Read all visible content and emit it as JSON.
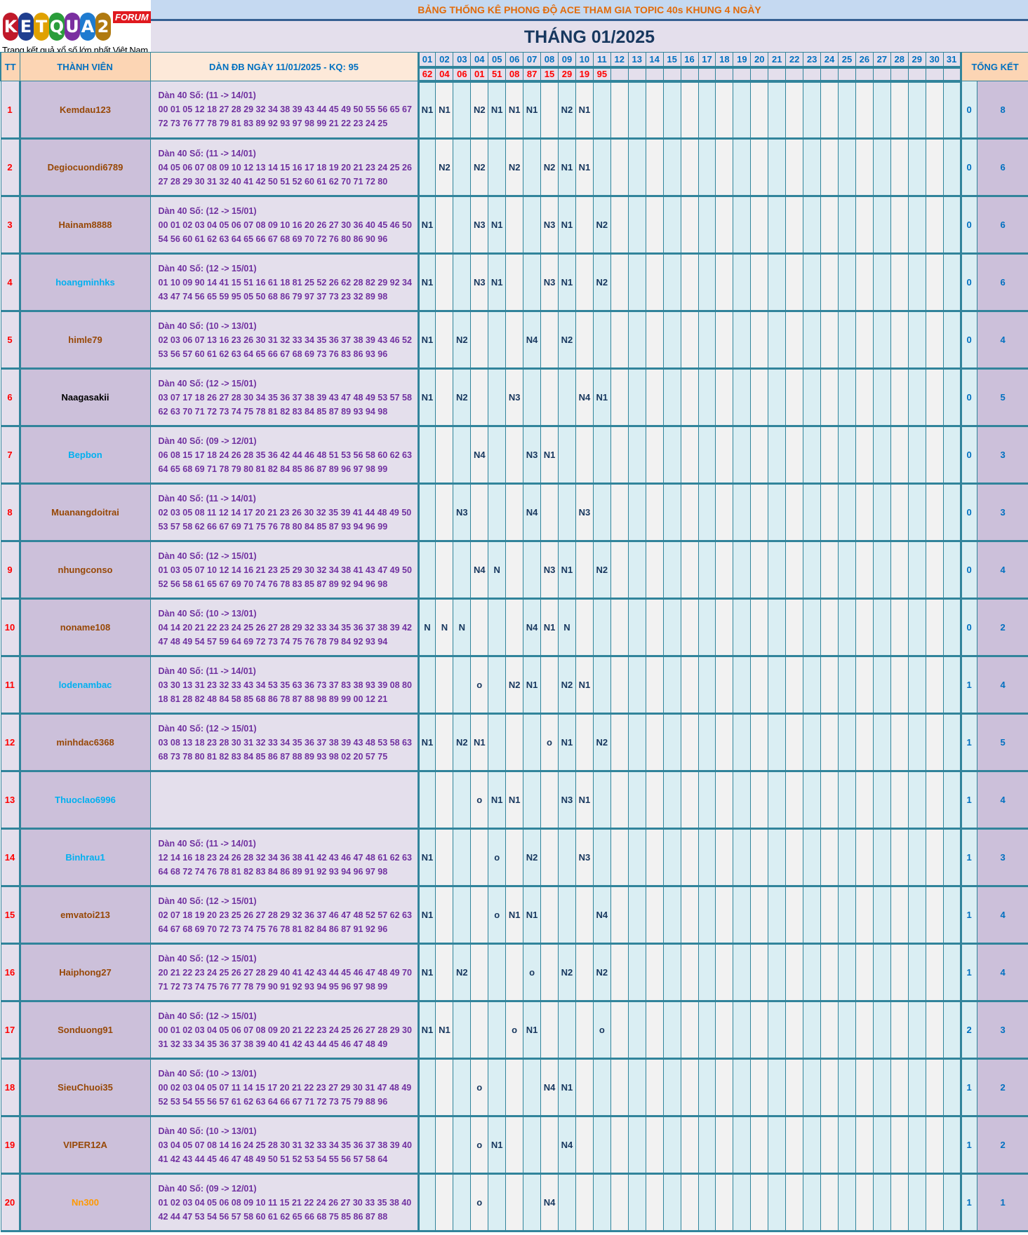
{
  "logo": {
    "letters": [
      "K",
      "E",
      "T",
      "Q",
      "U",
      "A",
      "2"
    ],
    "letter_colors": [
      "#c0192a",
      "#1f3e8f",
      "#e0a100",
      "#2a9d3a",
      "#7a2fa0",
      "#1e7bd0",
      "#b07a10"
    ],
    "badge": "FORUM",
    "slogan": "Trang kết quả xổ số lớn nhất Việt Nam"
  },
  "header": {
    "title": "BẢNG THỐNG KÊ PHONG ĐỘ ACE THAM GIA TOPIC 40s KHUNG 4 NGÀY",
    "month": "THÁNG 01/2025",
    "col_tt": "TT",
    "col_member": "THÀNH VIÊN",
    "col_dan": "DÀN ĐB NGÀY 11/01/2025 - KQ: 95",
    "col_summary": "TỔNG KẾT"
  },
  "days": [
    "01",
    "02",
    "03",
    "04",
    "05",
    "06",
    "07",
    "08",
    "09",
    "10",
    "11",
    "12",
    "13",
    "14",
    "15",
    "16",
    "17",
    "18",
    "19",
    "20",
    "21",
    "22",
    "23",
    "24",
    "25",
    "26",
    "27",
    "28",
    "29",
    "30",
    "31"
  ],
  "results": [
    "62",
    "04",
    "06",
    "01",
    "51",
    "08",
    "87",
    "15",
    "29",
    "19",
    "95"
  ],
  "rows": [
    {
      "tt": "1",
      "name": "Kemdau123",
      "name_color": "#974806",
      "dan_title": "Dàn 40 Số: (11 -> 14/01)",
      "dan": "00 01 05 12 18 27 28 29 32 34 38 39 43 44 45 49 50 55 56 65 67 72 73 76 77 78 79 81 83 89 92 93 97 98 99 21 22 23 24 25",
      "marks": [
        "N1",
        "N1",
        "",
        "N2",
        "N1",
        "N1",
        "N1",
        "",
        "N2",
        "N1",
        ""
      ],
      "s1": "0",
      "s2": "8"
    },
    {
      "tt": "2",
      "name": "Degiocuondi6789",
      "name_color": "#974806",
      "dan_title": "Dàn 40 Số: (11 -> 14/01)",
      "dan": "04 05 06 07 08 09 10 12 13 14 15 16 17 18 19 20 21 23 24 25 26 27 28 29 30 31 32 40 41 42 50 51 52 60 61 62 70 71 72 80",
      "marks": [
        "",
        "N2",
        "",
        "N2",
        "",
        "N2",
        "",
        "N2",
        "N1",
        "N1",
        ""
      ],
      "s1": "0",
      "s2": "6"
    },
    {
      "tt": "3",
      "name": "Hainam8888",
      "name_color": "#974806",
      "dan_title": "Dàn 40 Số: (12 -> 15/01)",
      "dan": "00 01 02 03 04 05 06 07 08 09 10 16 20 26 27 30 36 40 45 46 50 54 56 60 61 62 63 64 65 66 67 68 69 70 72 76 80 86 90 96",
      "marks": [
        "N1",
        "",
        "",
        "N3",
        "N1",
        "",
        "",
        "N3",
        "N1",
        "",
        "N2"
      ],
      "s1": "0",
      "s2": "6"
    },
    {
      "tt": "4",
      "name": "hoangminhks",
      "name_color": "#00b0f0",
      "dan_title": "Dàn 40 Số: (12 -> 15/01)",
      "dan": "01 10 09 90 14 41 15 51 16 61 18 81 25 52 26 62 28 82 29 92 34 43 47 74 56 65 59 95 05 50 68 86 79 97 37 73 23 32 89 98",
      "marks": [
        "N1",
        "",
        "",
        "N3",
        "N1",
        "",
        "",
        "N3",
        "N1",
        "",
        "N2"
      ],
      "s1": "0",
      "s2": "6"
    },
    {
      "tt": "5",
      "name": "himle79",
      "name_color": "#974806",
      "dan_title": "Dàn 40 Số: (10 -> 13/01)",
      "dan": "02 03 06 07 13 16 23 26 30 31 32 33 34 35 36 37 38 39 43 46 52 53 56 57 60 61 62 63 64 65 66 67 68 69 73 76 83 86 93 96",
      "marks": [
        "N1",
        "",
        "N2",
        "",
        "",
        "",
        "N4",
        "",
        "N2",
        "",
        ""
      ],
      "s1": "0",
      "s2": "4"
    },
    {
      "tt": "6",
      "name": "Naagasakii",
      "name_color": "#000000",
      "dan_title": "Dàn 40 Số: (12 -> 15/01)",
      "dan": "03 07 17 18 26 27 28 30 34 35 36 37 38 39 43 47 48 49 53 57 58 62 63 70 71 72 73 74 75 78 81 82 83 84 85 87 89 93 94 98",
      "marks": [
        "N1",
        "",
        "N2",
        "",
        "",
        "N3",
        "",
        "",
        "",
        "N4",
        "N1"
      ],
      "s1": "0",
      "s2": "5"
    },
    {
      "tt": "7",
      "name": "Bepbon",
      "name_color": "#00b0f0",
      "dan_title": "Dàn 40 Số: (09 -> 12/01)",
      "dan": "06 08 15 17 18 24 26 28 35 36 42 44 46 48 51 53 56 58 60 62 63 64 65 68 69 71 78 79 80 81 82 84 85 86 87 89 96 97 98 99",
      "marks": [
        "",
        "",
        "",
        "N4",
        "",
        "",
        "N3",
        "N1",
        "",
        "",
        ""
      ],
      "s1": "0",
      "s2": "3"
    },
    {
      "tt": "8",
      "name": "Muanangdoitrai",
      "name_color": "#974806",
      "dan_title": "Dàn 40 Số: (11 -> 14/01)",
      "dan": "02 03 05 08 11 12 14 17 20 21 23 26 30 32 35 39 41 44 48 49 50 53 57 58 62 66 67 69 71 75 76 78 80 84 85 87 93 94 96 99",
      "marks": [
        "",
        "",
        "N3",
        "",
        "",
        "",
        "N4",
        "",
        "",
        "N3",
        ""
      ],
      "s1": "0",
      "s2": "3"
    },
    {
      "tt": "9",
      "name": "nhungconso",
      "name_color": "#974806",
      "dan_title": "Dàn 40 Số: (12 -> 15/01)",
      "dan": "01 03 05 07 10 12 14 16 21 23 25 29 30 32 34 38 41 43 47 49 50 52 56 58 61 65 67 69 70 74 76 78 83 85 87 89 92 94 96 98",
      "marks": [
        "",
        "",
        "",
        "N4",
        "N",
        "",
        "",
        "N3",
        "N1",
        "",
        "N2"
      ],
      "s1": "0",
      "s2": "4"
    },
    {
      "tt": "10",
      "name": "noname108",
      "name_color": "#974806",
      "dan_title": "Dàn 40 Số: (10 -> 13/01)",
      "dan": "04 14 20 21 22 23 24 25 26 27 28 29 32 33 34 35 36 37 38 39 42 47 48 49 54 57 59 64 69 72 73 74 75 76 78 79 84 92 93 94",
      "marks": [
        "N",
        "N",
        "N",
        "",
        "",
        "",
        "N4",
        "N1",
        "N",
        "",
        ""
      ],
      "s1": "0",
      "s2": "2"
    },
    {
      "tt": "11",
      "name": "lodenambac",
      "name_color": "#00b0f0",
      "dan_title": "Dàn 40 Số: (11 -> 14/01)",
      "dan": "03 30 13 31 23 32 33 43 34 53 35 63 36 73 37 83 38 93 39 08 80 18 81 28 82 48 84 58 85 68 86 78 87 88 98 89 99 00 12 21",
      "marks": [
        "",
        "",
        "",
        "o",
        "",
        "N2",
        "N1",
        "",
        "N2",
        "N1",
        ""
      ],
      "s1": "1",
      "s2": "4"
    },
    {
      "tt": "12",
      "name": "minhdac6368",
      "name_color": "#974806",
      "dan_title": "Dàn 40 Số: (12 -> 15/01)",
      "dan": "03 08 13 18 23 28 30 31 32 33 34 35 36 37 38 39 43 48 53 58 63 68 73 78 80 81 82 83 84 85 86 87 88 89 93 98 02 20 57 75",
      "marks": [
        "N1",
        "",
        "N2",
        "N1",
        "",
        "",
        "",
        "o",
        "N1",
        "",
        "N2"
      ],
      "s1": "1",
      "s2": "5"
    },
    {
      "tt": "13",
      "name": "Thuoclao6996",
      "name_color": "#00b0f0",
      "dan_title": "",
      "dan": "",
      "marks": [
        "",
        "",
        "",
        "o",
        "N1",
        "N1",
        "",
        "",
        "N3",
        "N1",
        ""
      ],
      "s1": "1",
      "s2": "4"
    },
    {
      "tt": "14",
      "name": "Binhrau1",
      "name_color": "#00b0f0",
      "dan_title": "Dàn 40 Số: (11 -> 14/01)",
      "dan": "12 14 16 18 23 24 26 28 32 34 36 38 41 42 43 46 47 48 61 62 63 64 68 72 74 76 78 81 82 83 84 86 89 91 92 93 94 96 97 98",
      "marks": [
        "N1",
        "",
        "",
        "",
        "o",
        "",
        "N2",
        "",
        "",
        "N3",
        ""
      ],
      "s1": "1",
      "s2": "3"
    },
    {
      "tt": "15",
      "name": "emvatoi213",
      "name_color": "#974806",
      "dan_title": "Dàn 40 Số: (12 -> 15/01)",
      "dan": "02 07 18 19 20 23 25 26 27 28 29 32 36 37 46 47 48 52 57 62 63 64 67 68 69 70 72 73 74 75 76 78 81 82 84 86 87 91 92 96",
      "marks": [
        "N1",
        "",
        "",
        "",
        "o",
        "N1",
        "N1",
        "",
        "",
        "",
        "N4"
      ],
      "s1": "1",
      "s2": "4"
    },
    {
      "tt": "16",
      "name": "Haiphong27",
      "name_color": "#974806",
      "dan_title": "Dàn 40 Số: (12 -> 15/01)",
      "dan": "20 21 22 23 24 25 26 27 28 29 40 41 42 43 44 45 46 47 48 49 70 71 72 73 74 75 76 77 78 79 90 91 92 93 94 95 96 97 98 99",
      "marks": [
        "N1",
        "",
        "N2",
        "",
        "",
        "",
        "o",
        "",
        "N2",
        "",
        "N2"
      ],
      "s1": "1",
      "s2": "4"
    },
    {
      "tt": "17",
      "name": "Sonduong91",
      "name_color": "#974806",
      "dan_title": "Dàn 40 Số: (12 -> 15/01)",
      "dan": "00 01 02 03 04 05 06 07 08 09 20 21 22 23 24 25 26 27 28 29 30 31 32 33 34 35 36 37 38 39 40 41 42 43 44 45 46 47 48 49",
      "marks": [
        "N1",
        "N1",
        "",
        "",
        "",
        "o",
        "N1",
        "",
        "",
        "",
        "o"
      ],
      "s1": "2",
      "s2": "3"
    },
    {
      "tt": "18",
      "name": "SieuChuoi35",
      "name_color": "#974806",
      "dan_title": "Dàn 40 Số: (10 -> 13/01)",
      "dan": "00 02 03 04 05 07 11 14 15 17 20 21 22 23 27 29 30 31 47 48 49 52 53 54 55 56 57 61 62 63 64 66 67 71 72 73 75 79 88 96",
      "marks": [
        "",
        "",
        "",
        "o",
        "",
        "",
        "",
        "N4",
        "N1",
        "",
        ""
      ],
      "s1": "1",
      "s2": "2"
    },
    {
      "tt": "19",
      "name": "VIPER12A",
      "name_color": "#974806",
      "dan_title": "Dàn 40 Số: (10 -> 13/01)",
      "dan": "03 04 05 07 08 14 16 24 25 28 30 31 32 33 34 35 36 37 38 39 40 41 42 43 44 45 46 47 48 49 50 51 52 53 54 55 56 57 58 64",
      "marks": [
        "",
        "",
        "",
        "o",
        "N1",
        "",
        "",
        "",
        "N4",
        "",
        ""
      ],
      "s1": "1",
      "s2": "2"
    },
    {
      "tt": "20",
      "name": "Nn300",
      "name_color": "#ff9900",
      "dan_title": "Dàn 40 Số: (09 -> 12/01)",
      "dan": "01 02 03 04 05 06 08 09 10 11 15 21 22 24 26 27 30 33 35 38 40 42 44 47 53 54 56 57 58 60 61 62 65 66 68 75 85 86 87 88",
      "marks": [
        "",
        "",
        "",
        "o",
        "",
        "",
        "",
        "N4",
        "",
        "",
        ""
      ],
      "s1": "1",
      "s2": "1"
    }
  ]
}
